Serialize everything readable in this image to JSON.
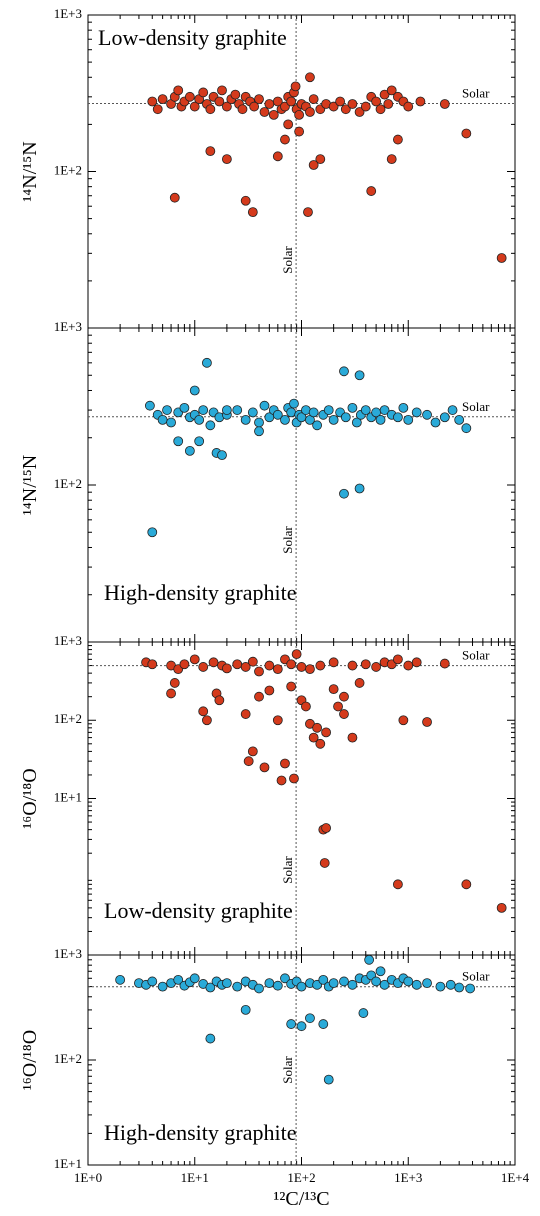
{
  "chart_data": [
    {
      "type": "scatter",
      "title": "Low-density graphite",
      "ylabel": "¹⁴N/¹⁵N",
      "solar_label": "Solar",
      "solar_x": 89,
      "solar_y": 272,
      "log": true,
      "color": "#d43a1c",
      "xlim": [
        1,
        10000
      ],
      "ylim": [
        10,
        1000
      ],
      "yticks": [
        {
          "value": 1000,
          "label": "1E+3"
        },
        {
          "value": 100,
          "label": "1E+2"
        }
      ],
      "x": [
        4,
        4.5,
        5,
        6,
        6.5,
        7,
        7.5,
        8,
        9,
        10,
        11,
        12,
        13,
        14,
        15,
        17,
        18,
        20,
        22,
        24,
        26,
        28,
        30,
        33,
        36,
        40,
        45,
        50,
        55,
        60,
        65,
        70,
        75,
        80,
        85,
        88,
        90,
        95,
        100,
        110,
        120,
        130,
        150,
        170,
        200,
        230,
        260,
        300,
        350,
        400,
        450,
        500,
        550,
        600,
        650,
        700,
        800,
        900,
        1000,
        1300,
        2200,
        6.5,
        14,
        20,
        30,
        35,
        60,
        70,
        120,
        115,
        150,
        130,
        450,
        700,
        800,
        3500,
        7500,
        95,
        75
      ],
      "values": [
        280,
        250,
        290,
        270,
        300,
        330,
        260,
        280,
        300,
        260,
        290,
        320,
        270,
        250,
        300,
        280,
        330,
        260,
        290,
        310,
        270,
        250,
        300,
        280,
        260,
        290,
        240,
        270,
        230,
        280,
        250,
        260,
        300,
        280,
        320,
        350,
        250,
        230,
        270,
        260,
        240,
        290,
        250,
        270,
        260,
        280,
        250,
        270,
        240,
        260,
        300,
        280,
        250,
        310,
        270,
        330,
        300,
        280,
        260,
        280,
        270,
        68,
        135,
        120,
        65,
        55,
        125,
        160,
        400,
        55,
        120,
        110,
        75,
        120,
        160,
        175,
        28,
        180,
        200
      ]
    },
    {
      "type": "scatter",
      "title": "High-density graphite",
      "ylabel": "¹⁴N/¹⁵N",
      "solar_label": "Solar",
      "solar_x": 89,
      "solar_y": 272,
      "log": true,
      "color": "#2aaad8",
      "xlim": [
        1,
        10000
      ],
      "ylim": [
        10,
        1000
      ],
      "yticks": [
        {
          "value": 1000,
          "label": "1E+3"
        },
        {
          "value": 100,
          "label": "1E+2"
        }
      ],
      "x": [
        3.8,
        4.5,
        5,
        5.5,
        6,
        7,
        8,
        9,
        10,
        11,
        12,
        14,
        15,
        17,
        20,
        25,
        30,
        35,
        40,
        45,
        50,
        55,
        60,
        70,
        75,
        80,
        85,
        90,
        95,
        100,
        110,
        120,
        130,
        140,
        160,
        180,
        200,
        230,
        260,
        300,
        330,
        360,
        400,
        450,
        500,
        550,
        600,
        700,
        800,
        900,
        1000,
        1200,
        1500,
        1800,
        2200,
        2600,
        3000,
        3500,
        4,
        13,
        10,
        16,
        18,
        9,
        250,
        350,
        250,
        350,
        7,
        11,
        20,
        40
      ],
      "values": [
        320,
        280,
        260,
        300,
        250,
        290,
        310,
        270,
        280,
        260,
        300,
        240,
        290,
        270,
        280,
        300,
        260,
        290,
        250,
        320,
        270,
        300,
        280,
        260,
        310,
        290,
        330,
        250,
        280,
        270,
        300,
        260,
        290,
        240,
        280,
        300,
        260,
        290,
        270,
        310,
        250,
        280,
        300,
        270,
        290,
        260,
        300,
        280,
        270,
        310,
        260,
        290,
        280,
        250,
        270,
        300,
        260,
        230,
        50,
        600,
        400,
        160,
        155,
        165,
        530,
        500,
        88,
        95,
        190,
        190,
        300,
        220
      ]
    },
    {
      "type": "scatter",
      "title": "Low-density graphite",
      "ylabel": "¹⁶O/¹⁸O",
      "solar_label": "Solar",
      "solar_x": 89,
      "solar_y": 499,
      "log": true,
      "color": "#d43a1c",
      "xlim": [
        1,
        10000
      ],
      "ylim": [
        0.1,
        1000
      ],
      "yticks": [
        {
          "value": 1000,
          "label": "1E+3"
        },
        {
          "value": 100,
          "label": "1E+2"
        },
        {
          "value": 10,
          "label": "1E+1"
        }
      ],
      "x": [
        3.5,
        4,
        6,
        7,
        8,
        10,
        12,
        15,
        18,
        20,
        25,
        30,
        35,
        40,
        50,
        60,
        70,
        80,
        90,
        100,
        120,
        150,
        200,
        300,
        400,
        500,
        600,
        700,
        800,
        1000,
        1200,
        2200,
        6,
        6.5,
        12,
        13,
        16,
        17,
        30,
        35,
        32,
        45,
        40,
        50,
        60,
        65,
        70,
        80,
        85,
        100,
        110,
        120,
        130,
        140,
        150,
        170,
        160,
        170,
        165,
        200,
        220,
        250,
        300,
        350,
        250,
        800,
        900,
        1500,
        3500,
        7500
      ],
      "values": [
        550,
        520,
        500,
        450,
        520,
        600,
        480,
        550,
        500,
        460,
        520,
        480,
        560,
        420,
        500,
        450,
        600,
        520,
        700,
        480,
        450,
        500,
        550,
        500,
        520,
        480,
        550,
        520,
        600,
        500,
        550,
        530,
        220,
        300,
        130,
        100,
        220,
        180,
        120,
        40,
        30,
        25,
        200,
        240,
        100,
        17,
        28,
        270,
        18,
        180,
        150,
        90,
        60,
        80,
        50,
        70,
        4,
        4.2,
        1.5,
        250,
        150,
        200,
        60,
        300,
        120,
        0.8,
        100,
        95,
        0.8,
        0.4
      ]
    },
    {
      "type": "scatter",
      "title": "High-density graphite",
      "ylabel": "¹⁶O/¹⁸O",
      "solar_label": "Solar",
      "solar_x": 89,
      "solar_y": 499,
      "log": true,
      "color": "#2aaad8",
      "xlabel": "¹²C/¹³C",
      "xlim": [
        1,
        10000
      ],
      "ylim": [
        10,
        1000
      ],
      "xticks": [
        {
          "value": 1,
          "label": "1E+0"
        },
        {
          "value": 10,
          "label": "1E+1"
        },
        {
          "value": 100,
          "label": "1E+2"
        },
        {
          "value": 1000,
          "label": "1E+3"
        },
        {
          "value": 10000,
          "label": "1E+4"
        }
      ],
      "yticks": [
        {
          "value": 1000,
          "label": "1E+3"
        },
        {
          "value": 100,
          "label": "1E+2"
        },
        {
          "value": 10,
          "label": "1E+1"
        }
      ],
      "x": [
        3,
        3.5,
        4,
        5,
        6,
        7,
        8,
        9,
        10,
        12,
        14,
        16,
        18,
        20,
        25,
        30,
        35,
        40,
        50,
        60,
        70,
        80,
        90,
        100,
        120,
        140,
        160,
        180,
        200,
        250,
        300,
        350,
        400,
        450,
        500,
        550,
        600,
        700,
        800,
        900,
        1000,
        1200,
        1500,
        2000,
        2500,
        3000,
        3800,
        14,
        2,
        80,
        100,
        120,
        160,
        180,
        380,
        30,
        430
      ],
      "values": [
        540,
        520,
        560,
        500,
        540,
        580,
        510,
        550,
        600,
        530,
        490,
        560,
        520,
        540,
        500,
        560,
        520,
        480,
        540,
        510,
        600,
        530,
        560,
        500,
        540,
        520,
        580,
        500,
        540,
        560,
        520,
        600,
        580,
        640,
        560,
        700,
        520,
        580,
        540,
        600,
        560,
        520,
        540,
        500,
        520,
        490,
        480,
        160,
        580,
        220,
        210,
        250,
        220,
        65,
        280,
        300,
        900
      ]
    }
  ]
}
